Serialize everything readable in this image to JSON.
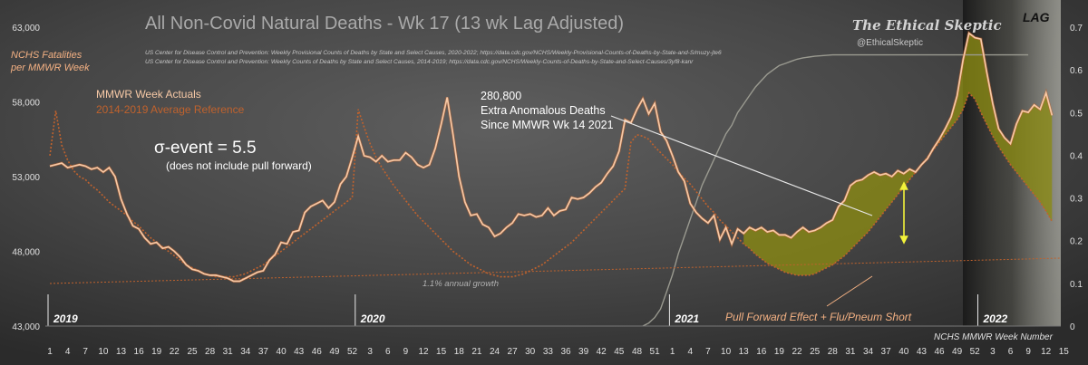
{
  "chart_data": {
    "type": "line",
    "title": "All Non-Covid Natural Deaths - Wk 17 (13 wk Lag Adjusted)",
    "source_lines": [
      "US Center for Disease Control and Prevention: Weekly Provisional Counts of Deaths by State and Select Causes, 2020-2022; https://data.cdc.gov/NCHS/Weekly-Provisional-Counts-of-Deaths-by-State-and-S/muzy-jte6",
      "US Center for Disease Control and Prevention: Weekly Counts of Deaths by State and Select Causes, 2014-2019; https://data.cdc.gov/NCHS/Weekly-Counts-of-Deaths-by-State-and-Select-Causes/3yf8-kanr"
    ],
    "brand": "The Ethical Skeptic",
    "brand_handle": "@EthicalSkeptic",
    "lag_label": "LAG",
    "ylabel_lines": [
      "NCHS Fatalities",
      "per MMWR Week"
    ],
    "xlabel": "NCHS MMWR Week Number",
    "y_ticks": [
      "63,000",
      "58,000",
      "53,000",
      "48,000",
      "43,000"
    ],
    "y2_ticks": [
      "0.7",
      "0.6",
      "0.5",
      "0.4",
      "0.3",
      "0.2",
      "0.1",
      "0"
    ],
    "ylim": [
      43000,
      63000
    ],
    "y2lim": [
      0,
      0.7
    ],
    "x_tick_labels": [
      "1",
      "4",
      "7",
      "10",
      "13",
      "16",
      "19",
      "22",
      "25",
      "28",
      "31",
      "34",
      "37",
      "40",
      "43",
      "46",
      "49",
      "52",
      "3",
      "6",
      "9",
      "12",
      "15",
      "18",
      "21",
      "24",
      "27",
      "30",
      "33",
      "36",
      "39",
      "42",
      "45",
      "48",
      "51",
      "1",
      "4",
      "7",
      "10",
      "13",
      "16",
      "19",
      "22",
      "25",
      "28",
      "31",
      "34",
      "37",
      "40",
      "43",
      "46",
      "49",
      "52",
      "3",
      "6",
      "9",
      "12",
      "15"
    ],
    "year_labels": [
      "2019",
      "2020",
      "2021",
      "2022"
    ],
    "legend": [
      {
        "name": "MMWR Week Actuals",
        "color": "#f7c9a6"
      },
      {
        "name": "2014-2019  Average Reference",
        "color": "#c0622d"
      }
    ],
    "annotations": {
      "sigma": "σ-event = 5.5",
      "sigma_note": "(does not include pull forward)",
      "anomalous_count": "280,800",
      "anomalous_line1": "Extra Anomalous Deaths",
      "anomalous_line2": "Since MMWR Wk 14 2021",
      "growth": "1.1% annual growth",
      "pull_forward": "Pull Forward Effect + Flu/Pneum Short"
    },
    "series": [
      {
        "name": "MMWR Week Actuals",
        "color": "#f7c9a6",
        "values": [
          53700,
          53800,
          53900,
          53600,
          53700,
          53800,
          53700,
          53500,
          53600,
          53300,
          53600,
          53000,
          51500,
          50500,
          49700,
          49500,
          48900,
          48500,
          48600,
          48200,
          48300,
          48000,
          47600,
          47100,
          46800,
          46700,
          46500,
          46400,
          46400,
          46300,
          46200,
          46000,
          46000,
          46200,
          46400,
          46600,
          46700,
          47400,
          47800,
          48600,
          48500,
          49300,
          49400,
          50600,
          51000,
          51200,
          51400,
          50900,
          51300,
          52500,
          53000,
          54300,
          55700,
          54400,
          54300,
          54000,
          54400,
          54000,
          54100,
          54100,
          54600,
          54300,
          53800,
          53600,
          53800,
          54900,
          56500,
          58300,
          55800,
          53000,
          51300,
          50400,
          50500,
          49800,
          49600,
          49000,
          49200,
          49600,
          49900,
          50500,
          50400,
          50500,
          50300,
          50400,
          50900,
          50400,
          50700,
          50800,
          51600,
          51500,
          51600,
          51900,
          52300,
          52600,
          53200,
          53700,
          54700,
          56800,
          56600,
          57500,
          58200,
          57200,
          57900,
          56000,
          55400,
          54400,
          53300,
          52700,
          51200,
          50600,
          50200,
          49900,
          50400,
          48800,
          49600,
          48500,
          49500,
          49200,
          49600,
          49400,
          49600,
          49300,
          49400,
          49100,
          49100,
          48900,
          49300,
          49600,
          49300,
          49400,
          49600,
          49900,
          50100,
          51000,
          51400,
          52400,
          52700,
          52800,
          53100,
          53300,
          53100,
          53200,
          53000,
          53400,
          53200,
          53500,
          53300,
          53800,
          54200,
          54900,
          55500,
          56200,
          57000,
          58400,
          60800,
          62600,
          62300,
          62200,
          60000,
          57900,
          56200,
          55600,
          55200,
          56500,
          57400,
          57300,
          57800,
          57500,
          58600,
          57100
        ]
      },
      {
        "name": "2014-2019  Average Reference",
        "color": "#c0622d",
        "values": [
          54400,
          57400,
          55100,
          54100,
          53400,
          53000,
          52800,
          52400,
          52100,
          51700,
          51300,
          51000,
          50700,
          50400,
          50000,
          49700,
          49300,
          48900,
          48600,
          48300,
          48000,
          47700,
          47400,
          47100,
          46900,
          46700,
          46500,
          46400,
          46300,
          46300,
          46300,
          46300,
          46400,
          46500,
          46700,
          46900,
          47100,
          47400,
          47700,
          48000,
          48300,
          48600,
          48900,
          49200,
          49500,
          49800,
          50100,
          50400,
          50700,
          51000,
          51300,
          51600,
          57500,
          56300,
          55200,
          54300,
          53600,
          53000,
          52400,
          51900,
          51400,
          50900,
          50400,
          50000,
          49600,
          49200,
          48800,
          48400,
          48000,
          47700,
          47400,
          47100,
          46900,
          46700,
          46500,
          46400,
          46300,
          46300,
          46300,
          46400,
          46500,
          46700,
          46900,
          47100,
          47400,
          47700,
          48000,
          48300,
          48600,
          49000,
          49400,
          49800,
          50200,
          50600,
          51000,
          51400,
          51800,
          52200,
          55300,
          55800,
          55700,
          55500,
          55000,
          54600,
          54200,
          53800,
          53300,
          52900,
          52500,
          52000,
          51500,
          51000,
          50600,
          50100,
          49700,
          49300,
          48900,
          48500,
          48200,
          47800,
          47500,
          47200,
          47000,
          46800,
          46600,
          46500,
          46400,
          46400,
          46400,
          46500,
          46700,
          46900,
          47100,
          47400,
          47700,
          48100,
          48500,
          48900,
          49300,
          49800,
          50300,
          50800,
          51300,
          51800,
          52300,
          52800,
          53300,
          53800,
          54300,
          54800,
          55300,
          55800,
          56300,
          56800,
          57500,
          58600,
          58200,
          57300,
          56500,
          55700,
          55000,
          54400,
          53800,
          53300,
          52800,
          52300,
          51800,
          51300,
          50700,
          50000
        ]
      },
      {
        "name": "Cumulative curve",
        "axis": "right",
        "color": "#9a9a90",
        "values": [
          0,
          0.007,
          0.02,
          0.04,
          0.08,
          0.12,
          0.17,
          0.21,
          0.25,
          0.29,
          0.33,
          0.36,
          0.39,
          0.42,
          0.45,
          0.47,
          0.5,
          0.52,
          0.54,
          0.56,
          0.575,
          0.59,
          0.6,
          0.61,
          0.615,
          0.62,
          0.625,
          0.628,
          0.63,
          0.632,
          0.633,
          0.634,
          0.635,
          0.635,
          0.635,
          0.635,
          0.635,
          0.635,
          0.635,
          0.635,
          0.635,
          0.635,
          0.635,
          0.635,
          0.635,
          0.635,
          0.635,
          0.635,
          0.635,
          0.635,
          0.635,
          0.635,
          0.635,
          0.635,
          0.635,
          0.635,
          0.635,
          0.635,
          0.635,
          0.635,
          0.635,
          0.635,
          0.635,
          0.635,
          0.635,
          0.635
        ]
      }
    ]
  }
}
